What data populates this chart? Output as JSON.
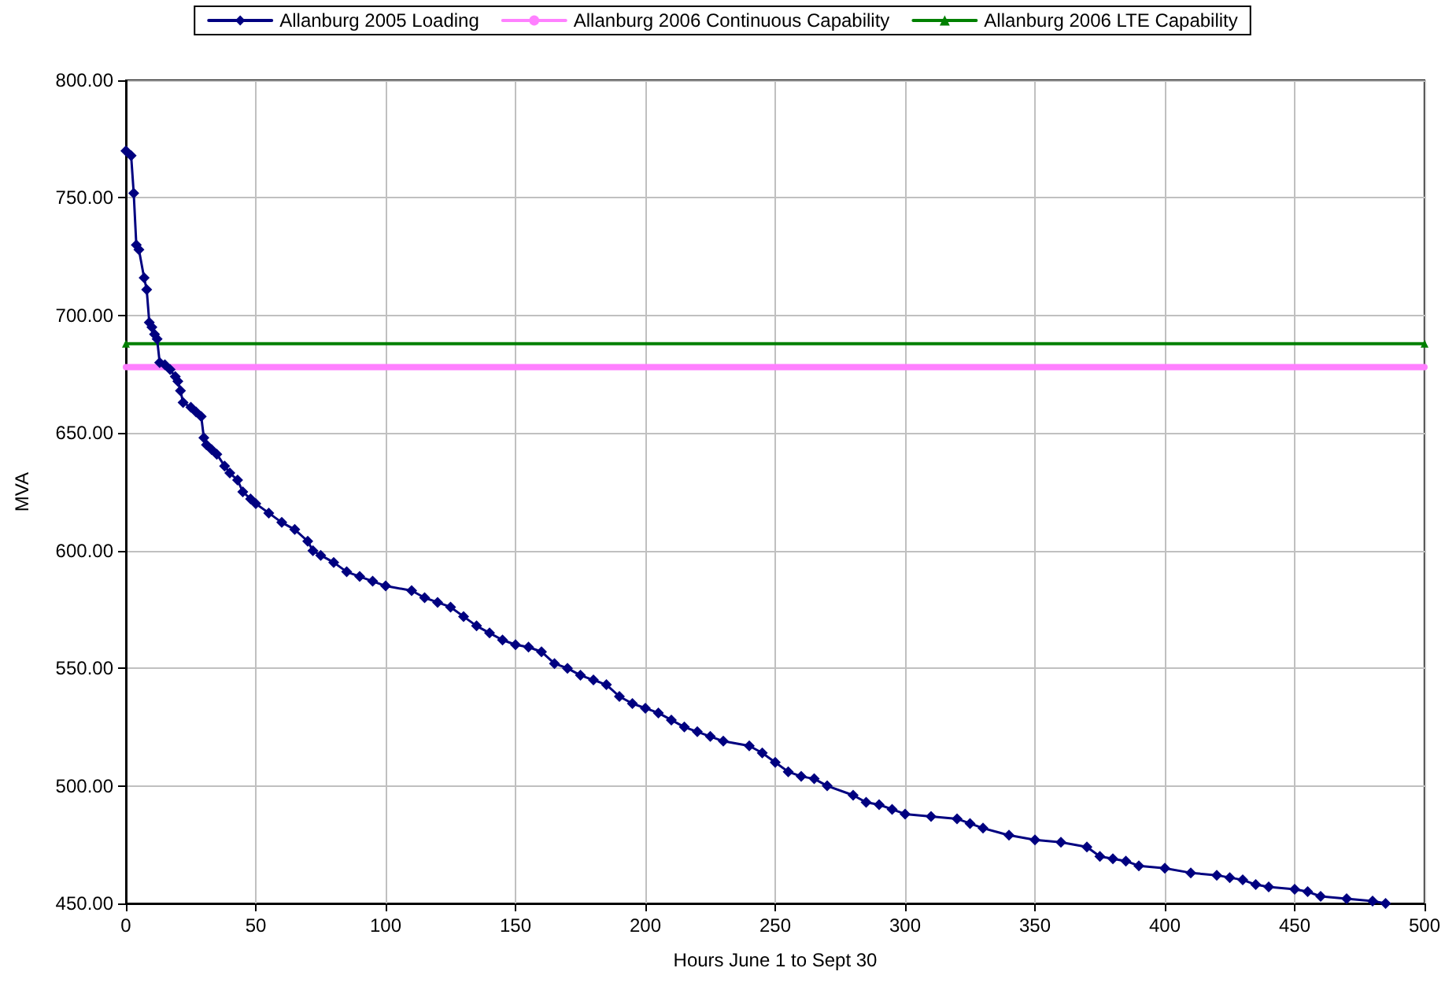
{
  "chart_data": {
    "type": "line",
    "xlabel": "Hours June 1 to Sept 30",
    "ylabel": "MVA",
    "xlim": [
      0,
      500
    ],
    "xticks": [
      0,
      50,
      100,
      150,
      200,
      250,
      300,
      350,
      400,
      450,
      500
    ],
    "ylim": [
      450,
      800
    ],
    "yticks": [
      {
        "value": 450,
        "label": "450.00"
      },
      {
        "value": 500,
        "label": "500.00"
      },
      {
        "value": 550,
        "label": "550.00"
      },
      {
        "value": 600,
        "label": "600.00"
      },
      {
        "value": 650,
        "label": "650.00"
      },
      {
        "value": 700,
        "label": "700.00"
      },
      {
        "value": 750,
        "label": "750.00"
      },
      {
        "value": 800,
        "label": "800.00"
      }
    ],
    "grid": true,
    "legend": "top",
    "series": [
      {
        "name": "Allanburg 2005 Loading",
        "color": "#000080",
        "marker": "diamond",
        "line_style": "solid",
        "x": [
          0,
          2,
          3,
          4,
          5,
          7,
          8,
          9,
          10,
          11,
          12,
          13,
          15,
          17,
          19,
          20,
          21,
          22,
          25,
          27,
          29,
          30,
          31,
          33,
          35,
          38,
          40,
          43,
          45,
          48,
          50,
          55,
          60,
          65,
          70,
          72,
          75,
          80,
          85,
          90,
          95,
          100,
          110,
          115,
          120,
          125,
          130,
          135,
          140,
          145,
          150,
          155,
          160,
          165,
          170,
          175,
          180,
          185,
          190,
          195,
          200,
          205,
          210,
          215,
          220,
          225,
          230,
          240,
          245,
          250,
          255,
          260,
          265,
          270,
          280,
          285,
          290,
          295,
          300,
          310,
          320,
          325,
          330,
          340,
          350,
          360,
          370,
          375,
          380,
          385,
          390,
          400,
          410,
          420,
          425,
          430,
          435,
          440,
          450,
          455,
          460,
          470,
          480,
          485
        ],
        "values": [
          770,
          768,
          752,
          730,
          728,
          716,
          711,
          697,
          695,
          692,
          690,
          680,
          679,
          677,
          674,
          672,
          668,
          663,
          661,
          659,
          657,
          648,
          645,
          643,
          641,
          636,
          633,
          630,
          625,
          622,
          620,
          616,
          612,
          609,
          604,
          600,
          598,
          595,
          591,
          589,
          587,
          585,
          583,
          580,
          578,
          576,
          572,
          568,
          565,
          562,
          560,
          559,
          557,
          552,
          550,
          547,
          545,
          543,
          538,
          535,
          533,
          531,
          528,
          525,
          523,
          521,
          519,
          517,
          514,
          510,
          506,
          504,
          503,
          500,
          496,
          493,
          492,
          490,
          488,
          487,
          486,
          484,
          482,
          479,
          477,
          476,
          474,
          470,
          469,
          468,
          466,
          465,
          463,
          462,
          461,
          460,
          458,
          457,
          456,
          455,
          453,
          452,
          451,
          450
        ]
      },
      {
        "name": "Allanburg 2006 Continuous Capability",
        "color": "#ff80ff",
        "marker": "none",
        "line_style": "solid",
        "x": [
          0,
          500
        ],
        "values": [
          678,
          678
        ]
      },
      {
        "name": "Allanburg 2006 LTE Capability",
        "color": "#008000",
        "marker": "triangle",
        "line_style": "solid",
        "x": [
          0,
          500
        ],
        "values": [
          688,
          688
        ]
      }
    ]
  }
}
